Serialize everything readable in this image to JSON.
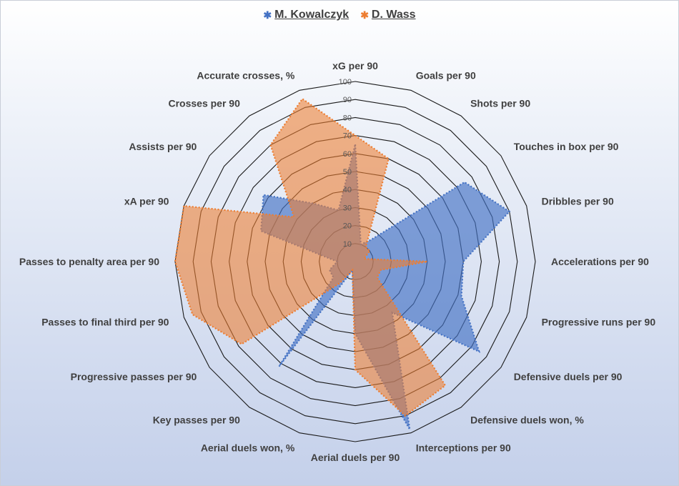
{
  "chart_data": {
    "type": "radar",
    "legend_position": "top",
    "range": [
      0,
      100
    ],
    "tick_step": 10,
    "tick_labels": [
      "10",
      "20",
      "30",
      "40",
      "50",
      "60",
      "70",
      "80",
      "90",
      "100"
    ],
    "categories": [
      "xG per 90",
      "Goals per 90",
      "Shots per 90",
      "Touches in box per 90",
      "Dribbles per 90",
      "Accelerations per 90",
      "Progressive runs per 90",
      "Defensive duels per 90",
      "Defensive duels won, %",
      "Interceptions per 90",
      "Aerial duels per 90",
      "Aerial duels won, %",
      "Key passes per 90",
      "Progressive passes per 90",
      "Passes to final third per 90",
      "Passes to penalty area per 90",
      "xA per 90",
      "Assists per 90",
      "Crosses per 90",
      "Accurate crosses, %"
    ],
    "series": [
      {
        "name": "M. Kowalczyk",
        "color": "#4472C4",
        "values": [
          65,
          10,
          15,
          75,
          90,
          60,
          62,
          85,
          35,
          98,
          40,
          5,
          72,
          15,
          15,
          10,
          55,
          63,
          40,
          30
        ]
      },
      {
        "name": "D. Wass",
        "color": "#ED7D31",
        "values": [
          70,
          60,
          10,
          10,
          5,
          40,
          15,
          15,
          85,
          90,
          60,
          5,
          15,
          78,
          95,
          100,
          100,
          42,
          80,
          95
        ]
      }
    ]
  }
}
